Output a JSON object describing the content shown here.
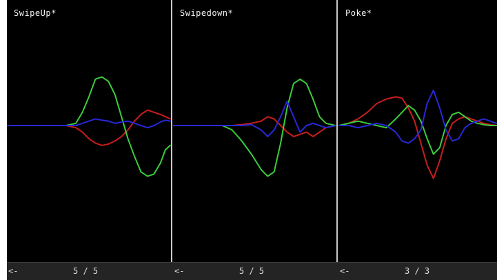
{
  "colors": {
    "background": "#000000",
    "divider": "#c9c9c9",
    "footer": "#242424",
    "text": "#f2f2f2",
    "red": "#c81e1e",
    "green": "#3ccd3c",
    "blue": "#2828d8"
  },
  "panels": [
    {
      "title": "SwipeUp*",
      "nav": {
        "back_label": "<-",
        "current": "5",
        "separator": "/",
        "total": "5",
        "counter": "5 / 5"
      }
    },
    {
      "title": "Swipedown*",
      "nav": {
        "back_label": "<-",
        "current": "5",
        "separator": "/",
        "total": "5",
        "counter": "5 / 5"
      }
    },
    {
      "title": "Poke*",
      "nav": {
        "back_label": "<-",
        "current": "3",
        "separator": "/",
        "total": "3",
        "counter": "3 / 3"
      }
    }
  ],
  "chart_data": [
    {
      "type": "line",
      "title": "SwipeUp*",
      "x": [
        0,
        0.06,
        0.12,
        0.18,
        0.24,
        0.3,
        0.36,
        0.42,
        0.46,
        0.5,
        0.54,
        0.58,
        0.62,
        0.66,
        0.7,
        0.74,
        0.78,
        0.82,
        0.86,
        0.9,
        0.94,
        0.97,
        1.0
      ],
      "series": [
        {
          "color": "red",
          "values": [
            0,
            0,
            0,
            0,
            0,
            0,
            0,
            -0.05,
            -0.15,
            -0.3,
            -0.4,
            -0.45,
            -0.42,
            -0.35,
            -0.25,
            -0.1,
            0.1,
            0.25,
            0.35,
            0.3,
            0.25,
            0.2,
            0.15
          ]
        },
        {
          "color": "green",
          "values": [
            0,
            0,
            0,
            0,
            0,
            0,
            0,
            0.05,
            0.3,
            0.65,
            1.05,
            1.1,
            1.0,
            0.7,
            0.2,
            -0.3,
            -0.7,
            -1.05,
            -1.15,
            -1.1,
            -0.85,
            -0.55,
            -0.45
          ]
        },
        {
          "color": "blue",
          "values": [
            0,
            0,
            0,
            0,
            0,
            0,
            0,
            0,
            0.05,
            0.1,
            0.15,
            0.12,
            0.1,
            0.05,
            0.08,
            0.1,
            0.05,
            0.0,
            -0.05,
            0.0,
            0.08,
            0.12,
            0.1
          ]
        }
      ],
      "ylim": [
        -1.3,
        1.3
      ]
    },
    {
      "type": "line",
      "title": "Swipedown*",
      "x": [
        0,
        0.06,
        0.12,
        0.18,
        0.24,
        0.3,
        0.36,
        0.42,
        0.48,
        0.54,
        0.58,
        0.62,
        0.66,
        0.7,
        0.74,
        0.78,
        0.82,
        0.86,
        0.9,
        0.94,
        1.0
      ],
      "series": [
        {
          "color": "red",
          "values": [
            0,
            0,
            0,
            0,
            0,
            0,
            0,
            0.02,
            0.05,
            0.1,
            0.2,
            0.15,
            0.0,
            -0.15,
            -0.25,
            -0.2,
            -0.15,
            -0.25,
            -0.15,
            -0.05,
            0.0
          ]
        },
        {
          "color": "green",
          "values": [
            0,
            0,
            0,
            0,
            0,
            0,
            -0.1,
            -0.35,
            -0.65,
            -1.0,
            -1.15,
            -1.05,
            -0.4,
            0.4,
            0.95,
            1.05,
            0.95,
            0.6,
            0.2,
            0.05,
            0.0
          ]
        },
        {
          "color": "blue",
          "values": [
            0,
            0,
            0,
            0,
            0,
            0,
            0,
            0,
            0.02,
            -0.1,
            -0.25,
            -0.1,
            0.2,
            0.55,
            0.2,
            -0.15,
            0.0,
            0.05,
            0.0,
            -0.05,
            0.0
          ]
        }
      ],
      "ylim": [
        -1.3,
        1.3
      ]
    },
    {
      "type": "line",
      "title": "Poke*",
      "x": [
        0,
        0.06,
        0.12,
        0.18,
        0.24,
        0.3,
        0.36,
        0.4,
        0.44,
        0.48,
        0.52,
        0.56,
        0.6,
        0.64,
        0.68,
        0.72,
        0.76,
        0.8,
        0.84,
        0.88,
        0.92,
        0.96,
        1.0
      ],
      "series": [
        {
          "color": "red",
          "values": [
            0,
            0.05,
            0.15,
            0.3,
            0.5,
            0.6,
            0.65,
            0.62,
            0.4,
            0.1,
            -0.4,
            -0.9,
            -1.2,
            -0.8,
            -0.3,
            0.05,
            0.15,
            0.2,
            0.15,
            0.1,
            0.05,
            0.02,
            0.0
          ]
        },
        {
          "color": "green",
          "values": [
            0,
            0.05,
            0.1,
            0.05,
            0.0,
            -0.05,
            0.15,
            0.3,
            0.45,
            0.35,
            0.1,
            -0.3,
            -0.65,
            -0.5,
            0.0,
            0.25,
            0.3,
            0.2,
            0.1,
            0.05,
            0.02,
            0.0,
            0.0
          ]
        },
        {
          "color": "blue",
          "values": [
            0,
            0.0,
            -0.05,
            0.0,
            0.05,
            0.0,
            -0.15,
            -0.35,
            -0.4,
            -0.3,
            -0.1,
            0.5,
            0.8,
            0.4,
            -0.1,
            -0.35,
            -0.3,
            -0.05,
            0.05,
            0.1,
            0.15,
            0.1,
            0.05
          ]
        }
      ],
      "ylim": [
        -1.3,
        1.3
      ]
    }
  ]
}
